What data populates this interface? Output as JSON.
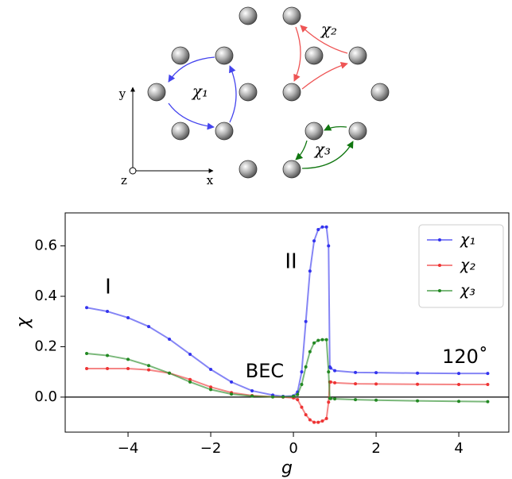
{
  "diagram": {
    "chi_labels": [
      "χ₁",
      "χ₂",
      "χ₃"
    ],
    "axis_labels": [
      "x",
      "y",
      "z"
    ]
  },
  "chart_data": {
    "type": "line",
    "xlabel": "g",
    "ylabel": "χ",
    "annotations": [
      "I",
      "II",
      "BEC",
      "120˚"
    ],
    "x": [
      -5,
      -4.5,
      -4,
      -3.5,
      -3,
      -2.5,
      -2,
      -1.5,
      -1,
      -0.5,
      -0.25,
      0,
      0.1,
      0.2,
      0.3,
      0.4,
      0.5,
      0.6,
      0.7,
      0.8,
      0.85,
      0.88,
      0.9,
      1.0,
      1.5,
      2,
      3,
      4,
      4.7
    ],
    "series": [
      {
        "name": "χ₁",
        "color": "#3333ee",
        "values": [
          0.355,
          0.34,
          0.315,
          0.28,
          0.23,
          0.17,
          0.11,
          0.06,
          0.025,
          0.008,
          0.003,
          0.005,
          0.02,
          0.1,
          0.3,
          0.5,
          0.62,
          0.665,
          0.675,
          0.675,
          0.6,
          0.12,
          0.115,
          0.105,
          0.098,
          0.097,
          0.095,
          0.094,
          0.094
        ]
      },
      {
        "name": "χ₂",
        "color": "#ee3333",
        "values": [
          0.113,
          0.113,
          0.113,
          0.108,
          0.095,
          0.07,
          0.04,
          0.018,
          0.006,
          0.001,
          0,
          -0.003,
          -0.01,
          -0.04,
          -0.07,
          -0.09,
          -0.1,
          -0.1,
          -0.095,
          -0.085,
          -0.02,
          0.06,
          0.06,
          0.057,
          0.053,
          0.052,
          0.051,
          0.05,
          0.05
        ]
      },
      {
        "name": "χ₃",
        "color": "#228822",
        "values": [
          0.173,
          0.165,
          0.15,
          0.125,
          0.095,
          0.06,
          0.03,
          0.012,
          0.004,
          0.001,
          0.001,
          0.003,
          0.01,
          0.05,
          0.12,
          0.18,
          0.215,
          0.225,
          0.228,
          0.228,
          0.1,
          -0.005,
          -0.006,
          -0.007,
          -0.01,
          -0.012,
          -0.015,
          -0.017,
          -0.018
        ]
      }
    ],
    "xlim": [
      -5.52,
      5.21
    ],
    "ylim": [
      -0.139,
      0.731
    ],
    "xticks": [
      {
        "value": -4,
        "label": "−4"
      },
      {
        "value": -2,
        "label": "−2"
      },
      0,
      2,
      4
    ],
    "yticks": [
      {
        "value": 0,
        "label": "0.0"
      },
      0.2,
      0.4,
      0.6
    ],
    "legend": "upper right",
    "zero_line": true
  }
}
